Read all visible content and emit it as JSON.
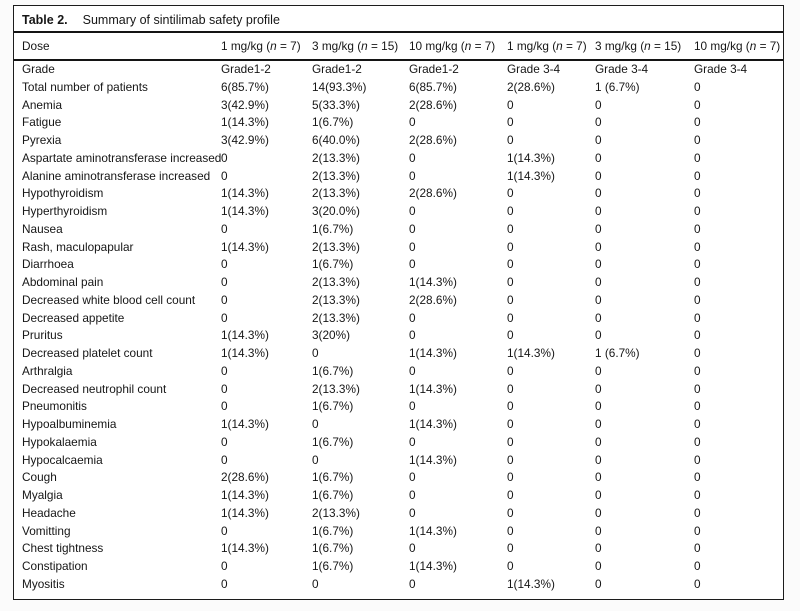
{
  "colors": {
    "border": "#1c1c1c",
    "rule": "#141414",
    "text": "#161616",
    "table_background": "#ffffff",
    "page_background": "#fbfbfb"
  },
  "table": {
    "title_label": "Table 2.",
    "title_text": "Summary of sintilimab safety profile",
    "header": {
      "dose_label": "Dose",
      "dose_columns": [
        "1 mg/kg (n = 7)",
        "3 mg/kg (n = 15)",
        "10 mg/kg (n = 7)",
        "1 mg/kg (n = 7)",
        "3 mg/kg (n = 15)",
        "10 mg/kg (n = 7)"
      ],
      "grade_label": "Grade",
      "grade_columns": [
        "Grade1-2",
        "Grade1-2",
        "Grade1-2",
        "Grade 3-4",
        "Grade 3-4",
        "Grade 3-4"
      ]
    },
    "rows": [
      {
        "label": "Total number of patients",
        "values": [
          "6(85.7%)",
          "14(93.3%)",
          "6(85.7%)",
          "2(28.6%)",
          "1 (6.7%)",
          "0"
        ]
      },
      {
        "label": "Anemia",
        "values": [
          "3(42.9%)",
          "5(33.3%)",
          "2(28.6%)",
          "0",
          "0",
          "0"
        ]
      },
      {
        "label": "Fatigue",
        "values": [
          "1(14.3%)",
          "1(6.7%)",
          "0",
          "0",
          "0",
          "0"
        ]
      },
      {
        "label": "Pyrexia",
        "values": [
          "3(42.9%)",
          "6(40.0%)",
          "2(28.6%)",
          "0",
          "0",
          "0"
        ]
      },
      {
        "label": "Aspartate aminotransferase increased",
        "values": [
          "0",
          "2(13.3%)",
          "0",
          "1(14.3%)",
          "0",
          "0"
        ]
      },
      {
        "label": "Alanine aminotransferase increased",
        "values": [
          "0",
          "2(13.3%)",
          "0",
          "1(14.3%)",
          "0",
          "0"
        ]
      },
      {
        "label": "Hypothyroidism",
        "values": [
          "1(14.3%)",
          "2(13.3%)",
          "2(28.6%)",
          "0",
          "0",
          "0"
        ]
      },
      {
        "label": "Hyperthyroidism",
        "values": [
          "1(14.3%)",
          "3(20.0%)",
          "0",
          "0",
          "0",
          "0"
        ]
      },
      {
        "label": "Nausea",
        "values": [
          "0",
          "1(6.7%)",
          "0",
          "0",
          "0",
          "0"
        ]
      },
      {
        "label": "Rash, maculopapular",
        "values": [
          "1(14.3%)",
          "2(13.3%)",
          "0",
          "0",
          "0",
          "0"
        ]
      },
      {
        "label": "Diarrhoea",
        "values": [
          "0",
          "1(6.7%)",
          "0",
          "0",
          "0",
          "0"
        ]
      },
      {
        "label": "Abdominal pain",
        "values": [
          "0",
          "2(13.3%)",
          "1(14.3%)",
          "0",
          "0",
          "0"
        ]
      },
      {
        "label": "Decreased white blood cell count",
        "values": [
          "0",
          "2(13.3%)",
          "2(28.6%)",
          "0",
          "0",
          "0"
        ]
      },
      {
        "label": "Decreased appetite",
        "values": [
          "0",
          "2(13.3%)",
          "0",
          "0",
          "0",
          "0"
        ]
      },
      {
        "label": "Pruritus",
        "values": [
          "1(14.3%)",
          "3(20%)",
          "0",
          "0",
          "0",
          "0"
        ]
      },
      {
        "label": "Decreased platelet count",
        "values": [
          "1(14.3%)",
          "0",
          "1(14.3%)",
          "1(14.3%)",
          "1 (6.7%)",
          "0"
        ]
      },
      {
        "label": "Arthralgia",
        "values": [
          "0",
          "1(6.7%)",
          "0",
          "0",
          "0",
          "0"
        ]
      },
      {
        "label": "Decreased neutrophil count",
        "values": [
          "0",
          "2(13.3%)",
          "1(14.3%)",
          "0",
          "0",
          "0"
        ]
      },
      {
        "label": "Pneumonitis",
        "values": [
          "0",
          "1(6.7%)",
          "0",
          "0",
          "0",
          "0"
        ]
      },
      {
        "label": "Hypoalbuminemia",
        "values": [
          "1(14.3%)",
          "0",
          "1(14.3%)",
          "0",
          "0",
          "0"
        ]
      },
      {
        "label": "Hypokalaemia",
        "values": [
          "0",
          "1(6.7%)",
          "0",
          "0",
          "0",
          "0"
        ]
      },
      {
        "label": "Hypocalcaemia",
        "values": [
          "0",
          "0",
          "1(14.3%)",
          "0",
          "0",
          "0"
        ]
      },
      {
        "label": "Cough",
        "values": [
          "2(28.6%)",
          "1(6.7%)",
          "0",
          "0",
          "0",
          "0"
        ]
      },
      {
        "label": "Myalgia",
        "values": [
          "1(14.3%)",
          "1(6.7%)",
          "0",
          "0",
          "0",
          "0"
        ]
      },
      {
        "label": "Headache",
        "values": [
          "1(14.3%)",
          "2(13.3%)",
          "0",
          "0",
          "0",
          "0"
        ]
      },
      {
        "label": "Vomitting",
        "values": [
          "0",
          "1(6.7%)",
          "1(14.3%)",
          "0",
          "0",
          "0"
        ]
      },
      {
        "label": "Chest tightness",
        "values": [
          "1(14.3%)",
          "1(6.7%)",
          "0",
          "0",
          "0",
          "0"
        ]
      },
      {
        "label": "Constipation",
        "values": [
          "0",
          "1(6.7%)",
          "1(14.3%)",
          "0",
          "0",
          "0"
        ]
      },
      {
        "label": "Myositis",
        "values": [
          "0",
          "0",
          "0",
          "1(14.3%)",
          "0",
          "0"
        ]
      }
    ]
  }
}
